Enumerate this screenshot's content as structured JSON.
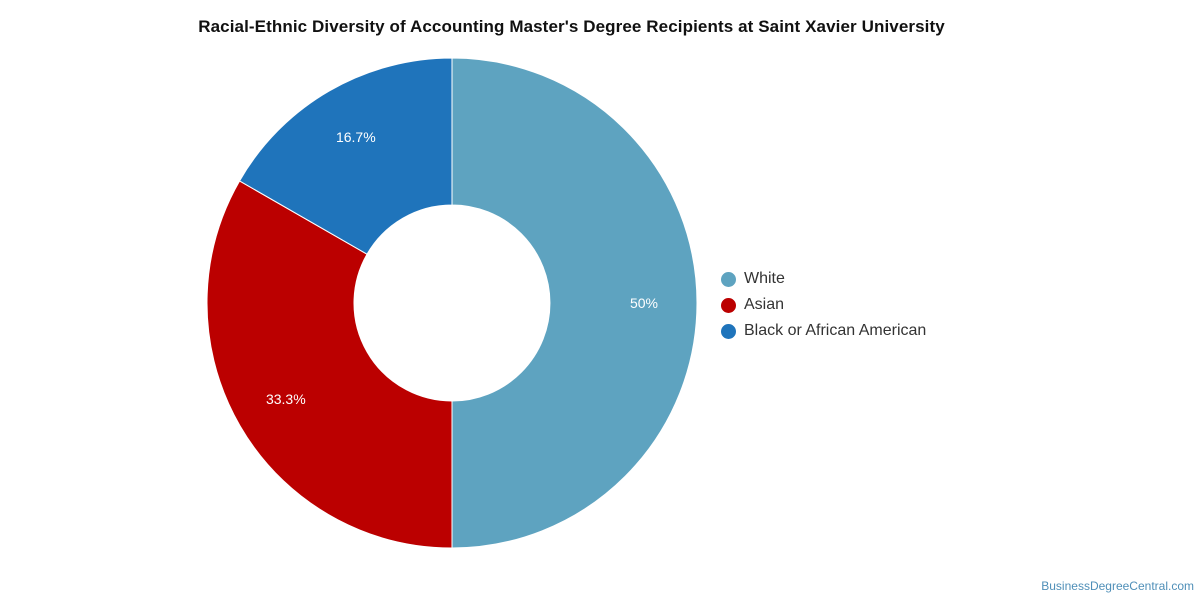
{
  "chart_data": {
    "type": "pie",
    "title": "Racial-Ethnic Diversity of Accounting Master's Degree Recipients at Saint Xavier University",
    "donut": true,
    "categories": [
      "White",
      "Asian",
      "Black or African American"
    ],
    "values": [
      50,
      33.3,
      16.7
    ],
    "labels": [
      "50%",
      "33.3%",
      "16.7%"
    ],
    "colors": [
      "#5ea3c0",
      "#bb0000",
      "#1f74bb"
    ],
    "legend_position": "right"
  },
  "watermark": "BusinessDegreeCentral.com"
}
